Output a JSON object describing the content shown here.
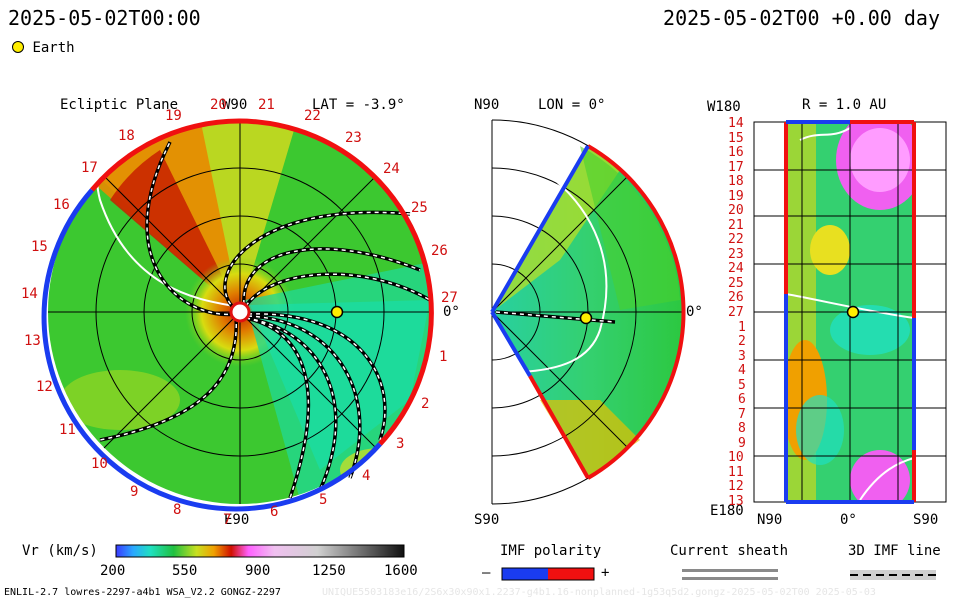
{
  "header": {
    "left_time": "2025-05-02T00:00",
    "right_time": "2025-05-02T00 +0.00 day",
    "earth_legend": "Earth"
  },
  "ecliptic": {
    "title": "Ecliptic Plane",
    "top_label": "W90",
    "bottom_label": "E90",
    "right_label": "0°",
    "lat_label": "LAT = -3.9°",
    "days_top": [
      "19",
      "20",
      "21",
      "22",
      "23",
      "24",
      "25",
      "26",
      "27"
    ],
    "days_left": [
      "18",
      "17",
      "16",
      "15",
      "14",
      "13",
      "12",
      "11",
      "10",
      "9",
      "8",
      "7",
      "6",
      "5",
      "4",
      "3",
      "2",
      "1"
    ]
  },
  "meridional": {
    "top_label": "N90",
    "bottom_label": "S90",
    "right_label": "0°",
    "lon_label": "LON = 0°"
  },
  "radial": {
    "top_left": "W180",
    "bottom_left": "E180",
    "title": "R = 1.0 AU",
    "x_left": "N90",
    "x_mid": "0°",
    "x_right": "S90",
    "days": [
      "14",
      "15",
      "16",
      "17",
      "18",
      "19",
      "20",
      "21",
      "22",
      "23",
      "24",
      "25",
      "26",
      "27",
      "1",
      "2",
      "3",
      "4",
      "5",
      "6",
      "7",
      "8",
      "9",
      "10",
      "11",
      "12",
      "13"
    ]
  },
  "colorbar": {
    "label": "Vr (km/s)",
    "ticks": [
      "200",
      "550",
      "900",
      "1250",
      "1600"
    ],
    "range": [
      200,
      1600
    ]
  },
  "legend": {
    "imf_title": "IMF polarity",
    "imf_minus": "–",
    "imf_plus": "+",
    "sheath_title": "Current sheath",
    "imf3d_title": "3D IMF line"
  },
  "footer": {
    "left": "ENLIL-2.7 lowres-2297-a4b1 WSA_V2.2 GONGZ-2297",
    "right_faded": "UNIQUE5503183e16/2S6x30x90x1.2237-g4b1.16-nonplanned-1g53q5d2.gongz-2025-05-02T00 2025-05-03"
  },
  "colors": {
    "negative": "#1a3cf0",
    "positive": "#f01010",
    "earth": "#ffee00",
    "day_labels": "#d01010"
  }
}
